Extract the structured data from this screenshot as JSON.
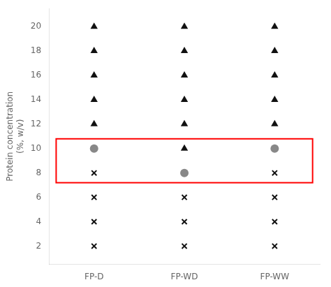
{
  "chart_data": {
    "type": "scatter",
    "categories": [
      "FP-D",
      "FP-WD",
      "FP-WW"
    ],
    "ylabel": "Protein concentration\n(%, w/v)",
    "ylim": [
      0.5,
      21.5
    ],
    "yticks": [
      2,
      4,
      6,
      8,
      10,
      12,
      14,
      16,
      18,
      20
    ],
    "grid": false,
    "series": [
      {
        "marker": "triangle",
        "color": "#111111",
        "x": [
          "FP-D",
          "FP-D",
          "FP-D",
          "FP-D",
          "FP-D",
          "FP-WD",
          "FP-WD",
          "FP-WD",
          "FP-WD",
          "FP-WD",
          "FP-WD",
          "FP-WW",
          "FP-WW",
          "FP-WW",
          "FP-WW",
          "FP-WW"
        ],
        "values": [
          12,
          14,
          16,
          18,
          20,
          10,
          12,
          14,
          16,
          18,
          20,
          12,
          14,
          16,
          18,
          20
        ]
      },
      {
        "marker": "circle",
        "color": "#888888",
        "x": [
          "FP-D",
          "FP-WD",
          "FP-WW"
        ],
        "values": [
          10,
          8,
          10
        ]
      },
      {
        "marker": "cross",
        "color": "#111111",
        "x": [
          "FP-D",
          "FP-D",
          "FP-D",
          "FP-D",
          "FP-WD",
          "FP-WD",
          "FP-WD",
          "FP-WW",
          "FP-WW",
          "FP-WW",
          "FP-WW"
        ],
        "values": [
          2,
          4,
          6,
          8,
          2,
          4,
          6,
          2,
          4,
          6,
          8
        ]
      }
    ],
    "highlight": {
      "y": [
        7.2,
        10.8
      ],
      "color": "red"
    }
  }
}
